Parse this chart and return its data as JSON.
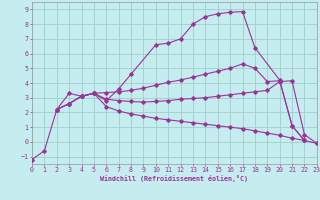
{
  "xlabel": "Windchill (Refroidissement éolien,°C)",
  "bg_color": "#c5ecee",
  "grid_color": "#9ecfca",
  "line_color": "#993399",
  "xlim": [
    0,
    23
  ],
  "ylim": [
    -1.5,
    9.5
  ],
  "xticks": [
    0,
    1,
    2,
    3,
    4,
    5,
    6,
    7,
    8,
    9,
    10,
    11,
    12,
    13,
    14,
    15,
    16,
    17,
    18,
    19,
    20,
    21,
    22,
    23
  ],
  "yticks": [
    -1,
    0,
    1,
    2,
    3,
    4,
    5,
    6,
    7,
    8,
    9
  ],
  "lines": [
    {
      "x": [
        0,
        1,
        2,
        3,
        4,
        5,
        6,
        7,
        8,
        10,
        11,
        12,
        13,
        14,
        15,
        16,
        17,
        18,
        20,
        21,
        22
      ],
      "y": [
        -1.2,
        -0.6,
        2.2,
        3.3,
        3.1,
        3.3,
        2.8,
        3.6,
        4.6,
        6.6,
        6.7,
        7.0,
        8.0,
        8.5,
        8.7,
        8.8,
        8.85,
        6.4,
        4.2,
        1.1,
        0.1
      ]
    },
    {
      "x": [
        2,
        3,
        4,
        5,
        6,
        7,
        8,
        9,
        10,
        11,
        12,
        13,
        14,
        15,
        16,
        17,
        18,
        19,
        20,
        21,
        22
      ],
      "y": [
        2.2,
        2.6,
        3.1,
        3.3,
        3.35,
        3.4,
        3.5,
        3.65,
        3.85,
        4.05,
        4.2,
        4.4,
        4.6,
        4.8,
        5.0,
        5.3,
        5.0,
        4.1,
        4.15,
        1.1,
        0.1
      ]
    },
    {
      "x": [
        2,
        3,
        4,
        5,
        6,
        7,
        8,
        9,
        10,
        11,
        12,
        13,
        14,
        15,
        16,
        17,
        18,
        19,
        20,
        21,
        22,
        23
      ],
      "y": [
        2.2,
        2.6,
        3.1,
        3.3,
        2.9,
        2.8,
        2.75,
        2.7,
        2.75,
        2.8,
        2.9,
        2.95,
        3.0,
        3.1,
        3.2,
        3.3,
        3.4,
        3.5,
        4.1,
        4.15,
        0.5,
        -0.1
      ]
    },
    {
      "x": [
        2,
        3,
        4,
        5,
        6,
        7,
        8,
        9,
        10,
        11,
        12,
        13,
        14,
        15,
        16,
        17,
        18,
        19,
        20,
        21,
        22,
        23
      ],
      "y": [
        2.2,
        2.6,
        3.1,
        3.3,
        2.4,
        2.1,
        1.9,
        1.75,
        1.6,
        1.5,
        1.4,
        1.3,
        1.2,
        1.1,
        1.0,
        0.9,
        0.75,
        0.6,
        0.45,
        0.25,
        0.1,
        -0.1
      ]
    }
  ]
}
